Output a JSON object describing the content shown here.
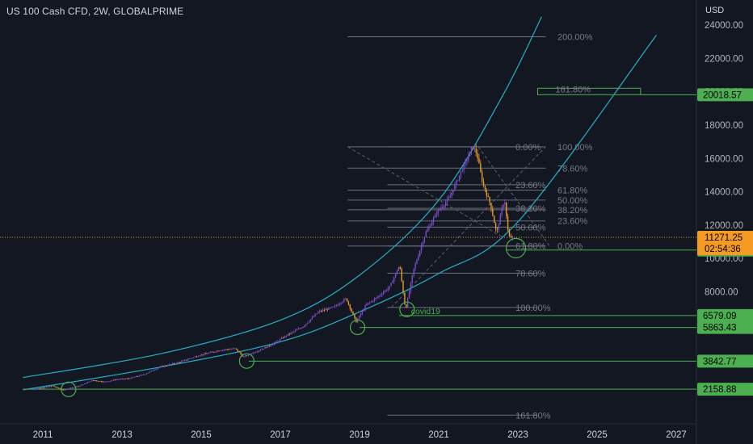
{
  "header": {
    "symbol_title": "US 100 Cash CFD, 2W, GLOBALPRIME",
    "currency": "USD"
  },
  "colors": {
    "background": "#131722",
    "up_candle": "#7b4fc9",
    "down_candle": "#e89b2c",
    "curve": "#26b0c8",
    "support_line": "#4caf50",
    "fib_line": "#6b6f78",
    "current_price_line": "#e8a23a",
    "price_badge": "#4caf50",
    "current_badge": "#f59a23"
  },
  "chart_data": {
    "type": "candlestick",
    "x_axis": {
      "ticks": [
        "2011",
        "2013",
        "2015",
        "2017",
        "2019",
        "2021",
        "2023",
        "2025",
        "2027"
      ],
      "range": [
        2010.4,
        2028.3
      ]
    },
    "y_axis": {
      "ticks": [
        "24000.00",
        "22000.00",
        "20000.00",
        "18000.00",
        "16000.00",
        "14000.00",
        "12000.00",
        "10000.00",
        "8000.00"
      ],
      "range": [
        500,
        25000
      ]
    },
    "price_path": [
      [
        2010.75,
        2150
      ],
      [
        2011.3,
        2350
      ],
      [
        2011.55,
        2100
      ],
      [
        2011.7,
        2200
      ],
      [
        2012.0,
        2400
      ],
      [
        2012.3,
        2700
      ],
      [
        2012.6,
        2600
      ],
      [
        2012.9,
        2750
      ],
      [
        2013.2,
        2800
      ],
      [
        2013.6,
        3050
      ],
      [
        2014.0,
        3500
      ],
      [
        2014.5,
        3800
      ],
      [
        2015.0,
        4200
      ],
      [
        2015.5,
        4500
      ],
      [
        2015.9,
        4600
      ],
      [
        2016.1,
        4100
      ],
      [
        2016.4,
        4400
      ],
      [
        2016.8,
        4800
      ],
      [
        2017.2,
        5400
      ],
      [
        2017.6,
        5900
      ],
      [
        2018.0,
        6800
      ],
      [
        2018.4,
        7100
      ],
      [
        2018.7,
        7600
      ],
      [
        2018.95,
        6200
      ],
      [
        2019.2,
        7200
      ],
      [
        2019.5,
        7700
      ],
      [
        2019.8,
        8300
      ],
      [
        2020.05,
        9600
      ],
      [
        2020.2,
        6900
      ],
      [
        2020.4,
        9300
      ],
      [
        2020.7,
        11500
      ],
      [
        2021.0,
        12800
      ],
      [
        2021.3,
        13600
      ],
      [
        2021.6,
        15200
      ],
      [
        2021.9,
        16700
      ],
      [
        2022.0,
        16300
      ],
      [
        2022.15,
        14500
      ],
      [
        2022.35,
        13200
      ],
      [
        2022.5,
        11500
      ],
      [
        2022.6,
        12600
      ],
      [
        2022.7,
        13600
      ],
      [
        2022.8,
        11300
      ],
      [
        2022.9,
        11271
      ]
    ],
    "curves": [
      {
        "points": [
          [
            2010.5,
            2860
          ],
          [
            2014,
            4300
          ],
          [
            2017,
            6300
          ],
          [
            2019,
            9000
          ],
          [
            2021,
            13500
          ],
          [
            2022.6,
            19700
          ],
          [
            2023.6,
            24500
          ]
        ]
      },
      {
        "points": [
          [
            2010.5,
            2120
          ],
          [
            2014,
            3500
          ],
          [
            2017,
            5000
          ],
          [
            2019,
            6800
          ],
          [
            2021,
            9100
          ],
          [
            2023,
            12200
          ],
          [
            2026.5,
            23400
          ]
        ]
      }
    ],
    "horizontal_levels": [
      {
        "price": 10508.01,
        "label": "10508.01",
        "x_start": 2022.7
      },
      {
        "price": 6579.09,
        "label": "6579.09",
        "x_start": 2020.0
      },
      {
        "price": 5863.43,
        "label": "5863.43",
        "x_start": 2019.0
      },
      {
        "price": 3842.77,
        "label": "3842.77",
        "x_start": 2016.2
      },
      {
        "price": 2158.88,
        "label": "2158.88",
        "x_start": 2010.5
      }
    ],
    "current_price": {
      "price": 11271.25,
      "label": "11271.25",
      "countdown": "02:54:36"
    },
    "target_box": {
      "price": 20018.57,
      "label": "20018.57",
      "x_range": [
        2023.5,
        2026.1
      ],
      "text": "161.80%"
    },
    "fib_upper": [
      {
        "price": 16700,
        "label": "0.00%"
      },
      {
        "price": 14420,
        "label": "23.60%"
      },
      {
        "price": 13010,
        "label": "38.20%"
      },
      {
        "price": 11880,
        "label": "50.00%"
      },
      {
        "price": 10750,
        "label": "61.80%"
      },
      {
        "price": 9120,
        "label": "78.60%"
      },
      {
        "price": 7060,
        "label": "100.00%"
      },
      {
        "price": 600,
        "label": "161.80%"
      }
    ],
    "fib_lower": [
      {
        "price": 23300,
        "label": "200.00%"
      },
      {
        "price": 16700,
        "label": "100.00%"
      },
      {
        "price": 15420,
        "label": "78.60%"
      },
      {
        "price": 14100,
        "label": "61.80%"
      },
      {
        "price": 13500,
        "label": "50.00%"
      },
      {
        "price": 12920,
        "label": "38.20%"
      },
      {
        "price": 12250,
        "label": "23.60%"
      },
      {
        "price": 10750,
        "label": "0.00%"
      }
    ],
    "annotations": [
      {
        "text": "covid19",
        "x": 2020.3,
        "price": 6850
      }
    ],
    "circles": [
      {
        "x": 2011.65,
        "price": 2150
      },
      {
        "x": 2016.15,
        "price": 3850
      },
      {
        "x": 2018.95,
        "price": 5870
      },
      {
        "x": 2020.2,
        "price": 6950
      },
      {
        "x": 2022.95,
        "price": 10620
      }
    ]
  }
}
